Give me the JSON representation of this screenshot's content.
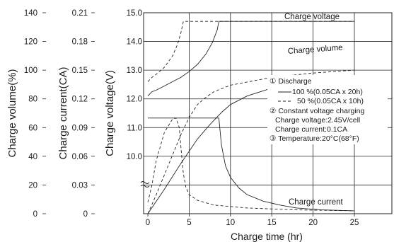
{
  "chart_data": {
    "type": "line",
    "xlabel": "Charge time (hr)",
    "ylabel_volume": "Charge volume(%)",
    "ylabel_current": "Charge current(CA)",
    "ylabel_voltage": "Charge voltage(V)",
    "xticks": [
      "0",
      "5",
      "10",
      "15",
      "20",
      "25"
    ],
    "xlim": [
      0,
      29
    ],
    "volume_ticks": [
      "140",
      "120",
      "100",
      "80",
      "60",
      "40",
      "20",
      "0"
    ],
    "current_ticks": [
      "0.21",
      "0.18",
      "0.15",
      "0.12",
      "0.09",
      "0.06",
      "0.03",
      "0"
    ],
    "voltage_ticks": [
      "15.0",
      "14.0",
      "13.0",
      "12.0",
      "11.0",
      "10.0"
    ],
    "voltage_grid_values": [
      15,
      14,
      13,
      12,
      11,
      10
    ],
    "curve_labels": {
      "voltage": "Charge voltage",
      "volume": "Charge volume",
      "current": "Charge current"
    },
    "legend": {
      "title": "① Discharge",
      "line100": "100 %(0.05CA x 20h)",
      "line50": "50 %(0.05CA x 10h)",
      "cv_title": "② Constant voltage charging",
      "cv_voltage": "Charge voltage:2.45V/cell",
      "cv_current": "Charge current:0.1CA",
      "temperature": "③ Temperature:20°C(68°F)"
    },
    "series": [
      {
        "name": "Charge voltage",
        "style": "solid",
        "points": [
          [
            0,
            12.1
          ],
          [
            0.5,
            12.25
          ],
          [
            1,
            12.3
          ],
          [
            2,
            12.45
          ],
          [
            3,
            12.6
          ],
          [
            4,
            12.75
          ],
          [
            5,
            12.95
          ],
          [
            6,
            13.2
          ],
          [
            7,
            13.55
          ],
          [
            7.8,
            13.95
          ],
          [
            8.4,
            14.4
          ],
          [
            8.6,
            14.7
          ],
          [
            25,
            14.7
          ]
        ]
      },
      {
        "name": "Charge voltage",
        "style": "dashed",
        "points": [
          [
            0,
            12.6
          ],
          [
            0.5,
            12.75
          ],
          [
            1,
            12.85
          ],
          [
            2,
            13.1
          ],
          [
            3,
            13.5
          ],
          [
            3.6,
            13.9
          ],
          [
            4,
            14.3
          ],
          [
            4.3,
            14.7
          ],
          [
            25,
            14.7
          ]
        ]
      },
      {
        "name": "Charge volume",
        "style": "solid",
        "points": [
          [
            0,
            0
          ],
          [
            2,
            17
          ],
          [
            4,
            35
          ],
          [
            6,
            52
          ],
          [
            7.5,
            62
          ],
          [
            9,
            71
          ],
          [
            10,
            76
          ],
          [
            12,
            82
          ],
          [
            15,
            87.5
          ],
          [
            18,
            90.5
          ],
          [
            22,
            92.5
          ],
          [
            25,
            93.5
          ]
        ]
      },
      {
        "name": "Charge volume",
        "style": "dashed",
        "points": [
          [
            0,
            0
          ],
          [
            1,
            13
          ],
          [
            2,
            27
          ],
          [
            3,
            41
          ],
          [
            4,
            55
          ],
          [
            5,
            67
          ],
          [
            6,
            76
          ],
          [
            7,
            81
          ],
          [
            8,
            85
          ],
          [
            10,
            89.5
          ],
          [
            15,
            95
          ],
          [
            20,
            98
          ],
          [
            25,
            100
          ]
        ]
      },
      {
        "name": "Charge current",
        "style": "solid",
        "points": [
          [
            0,
            0.1
          ],
          [
            8.6,
            0.1
          ],
          [
            8.9,
            0.072
          ],
          [
            9.4,
            0.05
          ],
          [
            10,
            0.038
          ],
          [
            11,
            0.027
          ],
          [
            12,
            0.02
          ],
          [
            14,
            0.013
          ],
          [
            16,
            0.009
          ],
          [
            18,
            0.006
          ],
          [
            21,
            0.004
          ],
          [
            25,
            0.003
          ]
        ]
      },
      {
        "name": "Charge current",
        "style": "dashed",
        "points": [
          [
            0,
            0.012
          ],
          [
            0.5,
            0.03
          ],
          [
            1,
            0.055
          ],
          [
            2,
            0.085
          ],
          [
            3,
            0.099
          ],
          [
            3.4,
            0.1
          ],
          [
            3.8,
            0.09
          ],
          [
            4.1,
            0.06
          ],
          [
            4.3,
            0.042
          ],
          [
            4.6,
            0.028
          ],
          [
            5,
            0.02
          ],
          [
            6,
            0.014
          ],
          [
            8,
            0.009
          ],
          [
            12,
            0.006
          ],
          [
            18,
            0.004
          ],
          [
            25,
            0.003
          ]
        ]
      }
    ]
  }
}
